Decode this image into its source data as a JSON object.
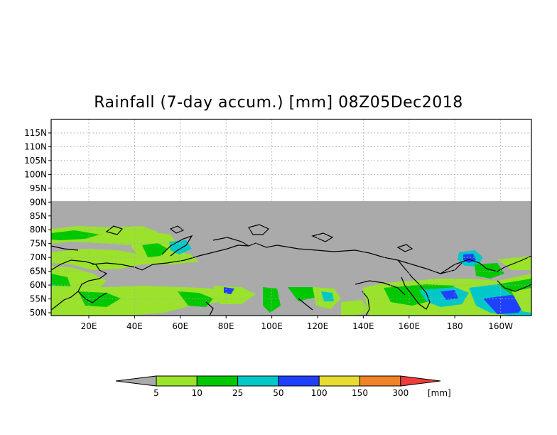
{
  "title": "Rainfall (7-day accum.) [mm] 08Z05Dec2018",
  "map": {
    "lon_labels": [
      "20E",
      "40E",
      "60E",
      "80E",
      "100E",
      "120E",
      "140E",
      "160E",
      "180",
      "160W"
    ],
    "lat_labels": [
      "115N",
      "110N",
      "105N",
      "100N",
      "95N",
      "90N",
      "85N",
      "80N",
      "75N",
      "70N",
      "65N",
      "60N",
      "55N",
      "50N"
    ],
    "no_data_color": "#aaaaaa",
    "coastline_color": "#000000",
    "gridline_style": "dotted"
  },
  "colorbar": {
    "unit": "[mm]",
    "tick_labels": [
      "5",
      "10",
      "25",
      "50",
      "100",
      "150",
      "300"
    ],
    "colors": [
      "#aaaaaa",
      "#9ae22c",
      "#00c800",
      "#00c8c8",
      "#2040ff",
      "#e6dc32",
      "#f08228",
      "#f03c3c"
    ]
  }
}
